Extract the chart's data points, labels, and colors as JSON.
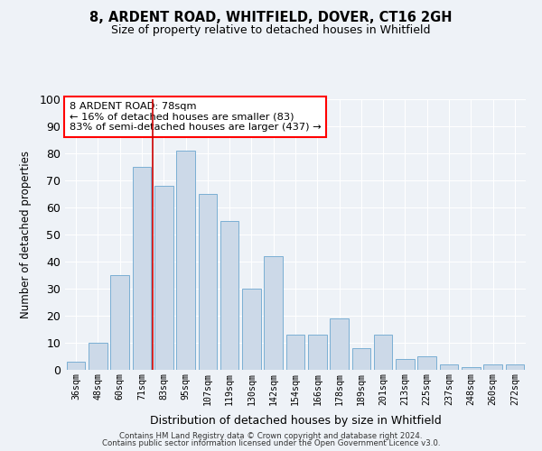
{
  "title": "8, ARDENT ROAD, WHITFIELD, DOVER, CT16 2GH",
  "subtitle": "Size of property relative to detached houses in Whitfield",
  "xlabel": "Distribution of detached houses by size in Whitfield",
  "ylabel": "Number of detached properties",
  "bar_color": "#ccd9e8",
  "bar_edge_color": "#7aafd4",
  "background_color": "#eef2f7",
  "grid_color": "#ffffff",
  "categories": [
    "36sqm",
    "48sqm",
    "60sqm",
    "71sqm",
    "83sqm",
    "95sqm",
    "107sqm",
    "119sqm",
    "130sqm",
    "142sqm",
    "154sqm",
    "166sqm",
    "178sqm",
    "189sqm",
    "201sqm",
    "213sqm",
    "225sqm",
    "237sqm",
    "248sqm",
    "260sqm",
    "272sqm"
  ],
  "values": [
    3,
    10,
    35,
    75,
    68,
    81,
    65,
    55,
    30,
    42,
    13,
    13,
    19,
    8,
    13,
    4,
    5,
    2,
    1,
    2,
    2
  ],
  "ylim": [
    0,
    100
  ],
  "annotation_title": "8 ARDENT ROAD: 78sqm",
  "annotation_line1": "← 16% of detached houses are smaller (83)",
  "annotation_line2": "83% of semi-detached houses are larger (437) →",
  "annotation_box_color": "white",
  "annotation_box_edge_color": "red",
  "property_bar_index": 4,
  "property_line_color": "#cc0000",
  "footer1": "Contains HM Land Registry data © Crown copyright and database right 2024.",
  "footer2": "Contains public sector information licensed under the Open Government Licence v3.0."
}
